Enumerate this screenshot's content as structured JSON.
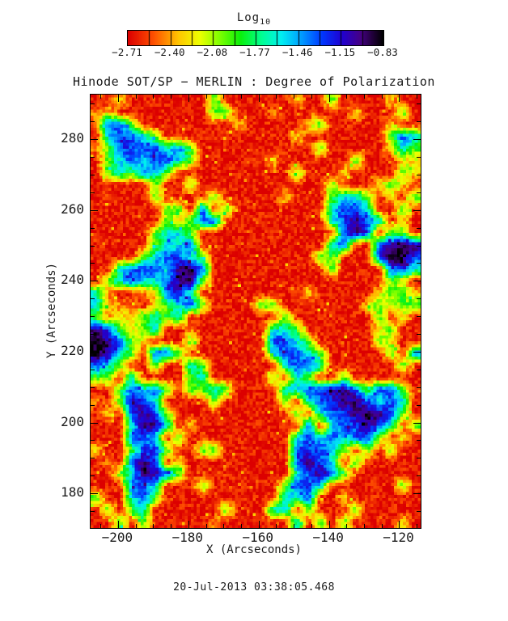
{
  "colorbar": {
    "title": "Log",
    "title_sub": "10",
    "segments": 12,
    "tick_labels": [
      "−2.71",
      "−2.40",
      "−2.08",
      "−1.77",
      "−1.46",
      "−1.15",
      "−0.83"
    ],
    "tick_values": [
      -2.71,
      -2.4,
      -2.08,
      -1.77,
      -1.46,
      -1.15,
      -0.83
    ],
    "colormap_stops": [
      [
        0.0,
        "#dc0000"
      ],
      [
        0.1,
        "#ff5000"
      ],
      [
        0.2,
        "#ffc800"
      ],
      [
        0.28,
        "#eeff00"
      ],
      [
        0.36,
        "#7cff00"
      ],
      [
        0.44,
        "#0af00a"
      ],
      [
        0.52,
        "#00ff8c"
      ],
      [
        0.6,
        "#00f0f0"
      ],
      [
        0.68,
        "#009cff"
      ],
      [
        0.76,
        "#0038ff"
      ],
      [
        0.84,
        "#2000d0"
      ],
      [
        0.91,
        "#460087"
      ],
      [
        0.96,
        "#200038"
      ],
      [
        1.0,
        "#000000"
      ]
    ]
  },
  "chart_data": {
    "type": "heatmap",
    "title": "Hinode SOT/SP − MERLIN : Degree of Polarization",
    "xlabel": "X (Arcseconds)",
    "ylabel": "Y (Arcseconds)",
    "annotation": "20-Jul-2013 03:38:05.468",
    "xlim": [
      -207.8,
      -113.9
    ],
    "ylim": [
      170.2,
      292.6
    ],
    "x_major_ticks": [
      -200,
      -180,
      -160,
      -140,
      -120
    ],
    "x_tick_labels": [
      "−200",
      "−180",
      "−160",
      "−140",
      "−120"
    ],
    "y_major_ticks": [
      180,
      200,
      220,
      240,
      260,
      280
    ],
    "y_tick_labels": [
      "180",
      "200",
      "220",
      "240",
      "260",
      "280"
    ],
    "minor_tick_step": 5,
    "colorbar_range": [
      -2.71,
      -0.83
    ],
    "legend_title": "Log10 Degree of Polarization",
    "value_key": {
      "r": -2.66,
      "o": -2.45,
      "y": -2.28,
      "g": -1.95,
      "c": -1.6,
      "b": -1.28,
      "p": -1.0,
      "k": -0.86
    },
    "grid_cols": 28,
    "grid_rows": [
      "rryrrrrrrrgrrrrrryrrgrrrryrr",
      "oyrrrrrrrrggrrrorrrrrryrrrgr",
      "obbgrrrrrrrryrrrrrygrrrrryrr",
      "rcbbcgrrrrrrrrrrryrrrrrrrgbc",
      "ogbbbbcbgrrrrrrrrrrgrrrrrycg",
      "rgcbcbbcgrrrrrryrrrrrrgrrryy",
      "rgcgbcgrrrrrrrrrrgrrryrrrrgy",
      "rrrrrgrrgrrrrrrrrrrrgrrrygyr",
      "rorrrgrrrrgrrrrryrrrgccgryrg",
      "rrrrrrggrbrgrrrrrrrrcbbcrrgr",
      "rrrrrrgygbbrrrrrrrrrcbpbcryr",
      "rrrrrgccgrrrrrrrrrrrrbpbrggr",
      "rrrrrgccbrrrrrrrrrrrcbrrbpkp",
      "rrrrgcbbcgrrrrrrrrrggrrrbkkb",
      "rrcbbbcppbrrrrrrrrrrgrrrrbbc",
      "rgcbccbppgrrrrrrrrrrrrrrrgyr",
      "corroybbcrrrrrrrrryrrrrryggy",
      "cyoorygcbgrrrrggrrrrrrrygygg",
      "goyygcgcrrrrrrrrgrrrrrrrgryr",
      "pbgygcrrorrrrrrccgrrrrrrygrr",
      "kpbgyrrrgrrrrrrbbcgrrrrrgyrr",
      "kpcgrbbgrrrrrrrcbbcgrrrrrgrb",
      "bcgrrgrrcgrrrrrrcbbcrrrrrrgr",
      "ggrcrrrrgcrrrrrgrcgrrgrrrrrr",
      "rrgbcbgrggcgrrrrccbbppbgbbgr",
      "orgpbcrrrrgrrrrrgrcbbppbcbcr",
      "ryrbpbgrrrrrrrrrrgrcbbpkpbgr",
      "rrrcppcryrrrrrrrrrbrcbbpbcrg",
      "rrrbbcrgrrrrrrrrrcbcbcbbgryr",
      "yrrgbbgrrggrrrrrrbbbcgrgrgrr",
      "rorbpbryrrrrrrrrrbpbcrgrrrrr",
      "rrgcppbgrrrrrrrrrcbpbgrrrrrr",
      "rrrbbcrrrgrrrrrrgbbcrrrrrrgr",
      "grrcbgrrrrrrrrrrccbrryrrrrrr",
      "rgrgcrrrrrrgrrrccrgrrrgrrrrr",
      "rrgrgrrrrrorrrrrrcrgrgrrrryr"
    ]
  }
}
